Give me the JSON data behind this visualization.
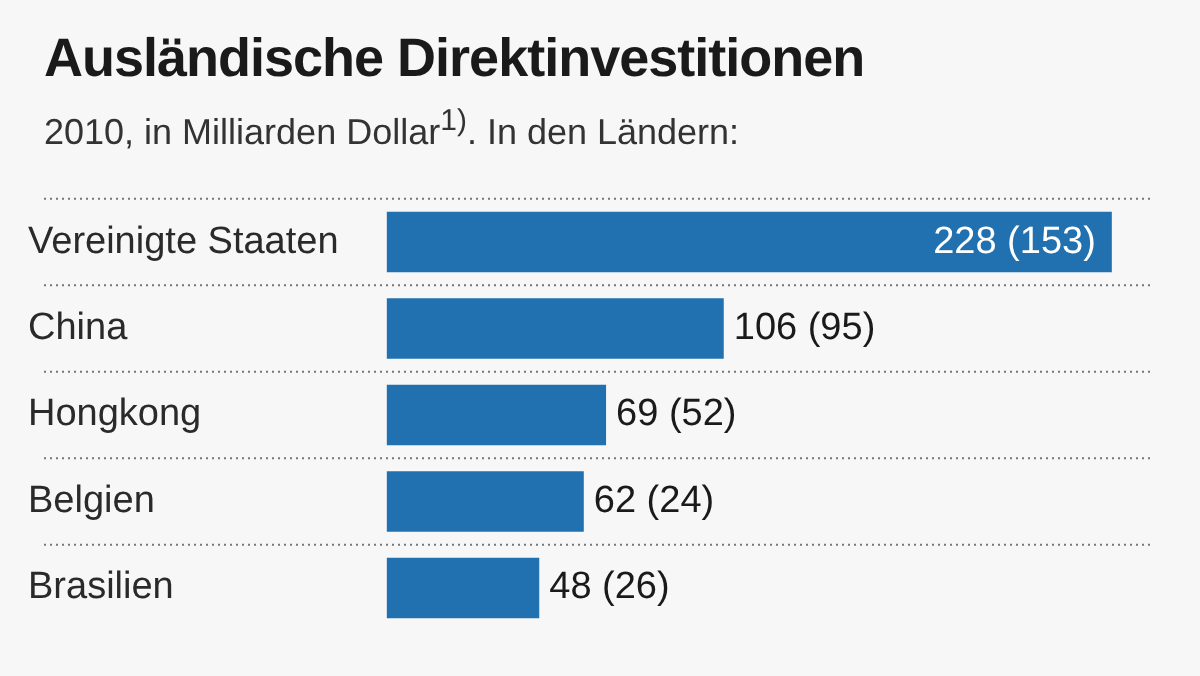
{
  "chart_data": {
    "type": "bar",
    "orientation": "horizontal",
    "title": "Ausländische Direktinvestitionen",
    "subtitle": "2010, in Milliarden Dollar$^{1)}$. In den Ländern:",
    "categories": [
      "Vereinigte Staaten",
      "China",
      "Hongkong",
      "Belgien",
      "Brasilien"
    ],
    "values": [
      228,
      106,
      69,
      62,
      48
    ],
    "value_labels": [
      "228 (153)",
      "106 (95)",
      "69 (52)",
      "62 (24)",
      "48 (26)"
    ],
    "color": "#2170b0",
    "xlim": [
      0,
      240
    ],
    "tick_labels": "y",
    "grid": false,
    "legend": false
  }
}
